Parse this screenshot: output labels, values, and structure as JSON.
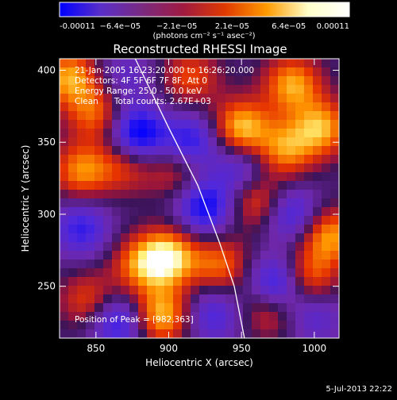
{
  "chart_data": {
    "type": "heatmap",
    "title": "Reconstructed RHESSI Image",
    "xlabel": "Heliocentric X (arcsec)",
    "ylabel": "Heliocentric Y (arcsec)",
    "xlim": [
      825,
      1017
    ],
    "ylim": [
      214,
      408
    ],
    "xticks": [
      850,
      900,
      950,
      1000
    ],
    "yticks": [
      250,
      300,
      350,
      400
    ],
    "colorbar": {
      "range": [
        -0.00011,
        0.00011
      ],
      "ticks": [
        "-0.00011",
        "−6.4e−05",
        "−2.1e−05",
        "2.1e−05",
        "6.4e−05",
        "0.00011"
      ],
      "tick_values": [
        -0.00011,
        -6.4e-05,
        -2.1e-05,
        2.1e-05,
        6.4e-05,
        0.00011
      ],
      "unit_label": "(photons cm⁻² s⁻¹ asec⁻²)",
      "colors": [
        "#0000ff",
        "#5a2fc8",
        "#7a2a80",
        "#a11a40",
        "#e03a00",
        "#ff9a00",
        "#ffffc8",
        "#ffffff"
      ]
    },
    "limb_curve": [
      [
        877,
        408
      ],
      [
        900,
        360
      ],
      [
        920,
        320
      ],
      [
        935,
        280
      ],
      [
        945,
        250
      ],
      [
        952,
        214
      ]
    ],
    "blobs": [
      {
        "x": 832,
        "y": 395,
        "v": 9e-05
      },
      {
        "x": 850,
        "y": 370,
        "v": 7e-05
      },
      {
        "x": 840,
        "y": 330,
        "v": 8e-05
      },
      {
        "x": 870,
        "y": 335,
        "v": 6e-05
      },
      {
        "x": 905,
        "y": 330,
        "v": 5e-05
      },
      {
        "x": 985,
        "y": 390,
        "v": 9e-05
      },
      {
        "x": 980,
        "y": 345,
        "v": 8e-05
      },
      {
        "x": 950,
        "y": 360,
        "v": 0.0001
      },
      {
        "x": 1005,
        "y": 360,
        "v": 9e-05
      },
      {
        "x": 1010,
        "y": 285,
        "v": 9e-05
      },
      {
        "x": 960,
        "y": 310,
        "v": 7e-05
      },
      {
        "x": 995,
        "y": 255,
        "v": 8e-05
      },
      {
        "x": 970,
        "y": 235,
        "v": 7e-05
      },
      {
        "x": 900,
        "y": 270,
        "v": 0.00011
      },
      {
        "x": 880,
        "y": 265,
        "v": 7e-05
      },
      {
        "x": 895,
        "y": 230,
        "v": 0.0001
      },
      {
        "x": 935,
        "y": 265,
        "v": 7e-05
      },
      {
        "x": 845,
        "y": 240,
        "v": 6e-05
      },
      {
        "x": 915,
        "y": 395,
        "v": 6e-05
      },
      {
        "x": 870,
        "y": 395,
        "v": -4e-05
      },
      {
        "x": 878,
        "y": 355,
        "v": -0.00011
      },
      {
        "x": 915,
        "y": 350,
        "v": -8e-05
      },
      {
        "x": 925,
        "y": 305,
        "v": -9e-05
      },
      {
        "x": 840,
        "y": 290,
        "v": -7e-05
      },
      {
        "x": 865,
        "y": 225,
        "v": -8e-05
      },
      {
        "x": 985,
        "y": 300,
        "v": -7e-05
      },
      {
        "x": 975,
        "y": 250,
        "v": -0.00011
      },
      {
        "x": 930,
        "y": 230,
        "v": -6e-05
      },
      {
        "x": 1000,
        "y": 230,
        "v": -5e-05
      },
      {
        "x": 950,
        "y": 330,
        "v": -6e-05
      }
    ]
  },
  "annotations": {
    "line1": "21-Jan-2005 16:23:20.000 to 16:26:20.000",
    "line2": "Detectors: 4F 5F 6F 7F 8F, Att 0",
    "line3": "Energy Range: 25.0 - 50.0 keV",
    "line4": "Clean      Total counts: 2.67E+03",
    "peak": "Position of Peak = [982,363]"
  },
  "footer": {
    "date": "5-Jul-2013 22:22"
  }
}
